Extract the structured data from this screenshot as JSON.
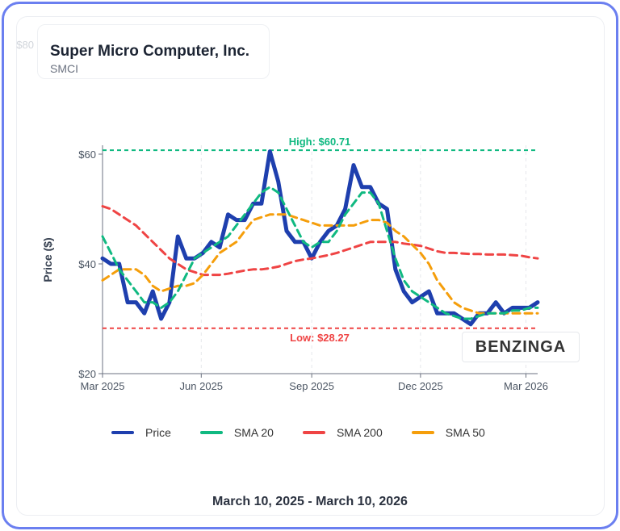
{
  "header": {
    "title": "Super Micro Computer, Inc.",
    "ticker": "SMCI"
  },
  "footer": {
    "date_range": "March 10, 2025 - March 10, 2026"
  },
  "watermark": "BENZINGA",
  "chart_data": {
    "type": "line",
    "ylabel": "Price ($)",
    "ylim": [
      20,
      80
    ],
    "yticks": [
      {
        "v": 20,
        "label": "$20"
      },
      {
        "v": 40,
        "label": "$40"
      },
      {
        "v": 60,
        "label": "$60"
      },
      {
        "v": 80,
        "label": "$80"
      }
    ],
    "xticks": [
      {
        "w": -1.2,
        "label": "Mar 2025"
      },
      {
        "w": 11.8,
        "label": "Jun 2025"
      },
      {
        "w": 25,
        "label": "Sep 2025"
      },
      {
        "w": 38,
        "label": "Dec 2025"
      },
      {
        "w": 50.6,
        "label": "Mar 2026"
      }
    ],
    "x_unit": "weeks since Mar 10, 2025",
    "high": {
      "value": 60.71,
      "label": "High: $60.71",
      "color": "#10b981"
    },
    "low": {
      "value": 28.27,
      "label": "Low: $28.27",
      "color": "#ef4444"
    },
    "series": [
      {
        "name": "Price",
        "color": "#1e3fae",
        "dashed": false,
        "values": [
          41,
          40,
          40,
          33,
          33,
          31,
          35,
          30,
          33,
          45,
          41,
          41,
          42,
          44,
          43,
          49,
          48,
          48,
          51,
          51,
          60.5,
          55,
          46,
          44,
          44,
          41,
          44,
          46,
          47,
          50,
          58,
          54,
          54,
          51,
          50,
          39,
          35,
          33,
          34,
          35,
          31,
          31,
          31,
          30,
          29,
          31,
          31,
          33,
          31,
          32,
          32,
          32,
          33
        ]
      },
      {
        "name": "SMA 20",
        "color": "#10b981",
        "dashed": true,
        "values": [
          45,
          42,
          39,
          37,
          35,
          33,
          33,
          32,
          33,
          35,
          38,
          41,
          42,
          43,
          44,
          45,
          47,
          49,
          51,
          53,
          54,
          53,
          50,
          47,
          44,
          43,
          44,
          44,
          46,
          49,
          51,
          53,
          53,
          51,
          46,
          41,
          37,
          35,
          34,
          33,
          32,
          31,
          30.5,
          30,
          30,
          30.5,
          31,
          31,
          31,
          31.5,
          31.5,
          32,
          32
        ]
      },
      {
        "name": "SMA 200",
        "color": "#ef4444",
        "dashed": true,
        "values": [
          50.5,
          50,
          49,
          48,
          47,
          45.5,
          44,
          42.5,
          41,
          40,
          39,
          38.5,
          38,
          38,
          38,
          38.2,
          38.5,
          38.8,
          39,
          39,
          39.2,
          39.5,
          40,
          40.5,
          40.8,
          41,
          41.3,
          41.6,
          42,
          42.5,
          43,
          43.5,
          44,
          44,
          44,
          44,
          43.7,
          43.5,
          43.3,
          42.8,
          42.3,
          42,
          42,
          41.9,
          41.8,
          41.8,
          41.7,
          41.7,
          41.7,
          41.6,
          41.5,
          41.2,
          41
        ]
      },
      {
        "name": "SMA 50",
        "color": "#f59e0b",
        "dashed": true,
        "values": [
          37,
          38,
          39,
          39,
          39,
          38,
          36,
          35,
          35.5,
          36,
          36,
          36.5,
          38,
          40,
          42,
          43,
          44,
          46,
          48,
          48.5,
          49,
          49,
          49,
          48.5,
          48,
          47.5,
          47,
          47,
          47,
          47,
          47,
          47.5,
          48,
          48,
          47.5,
          46,
          45,
          43.5,
          42,
          40,
          37,
          35,
          33,
          32,
          31.5,
          31,
          31,
          31,
          31,
          31,
          31,
          31,
          31
        ]
      }
    ]
  }
}
